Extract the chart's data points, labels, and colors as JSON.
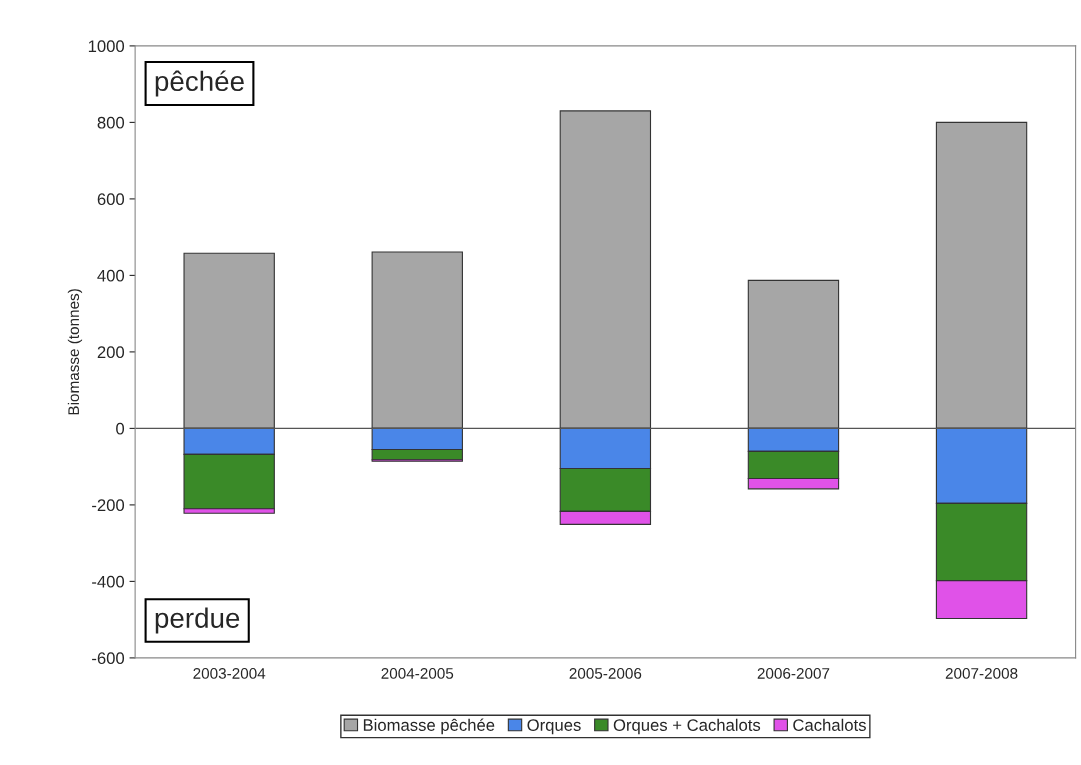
{
  "chart_data": {
    "type": "bar",
    "stacked": true,
    "ylabel": "Biomasse (tonnes)",
    "categories": [
      "2003-2004",
      "2004-2005",
      "2005-2006",
      "2006-2007",
      "2007-2008"
    ],
    "series": [
      {
        "name": "Biomasse pêchée",
        "color": "#a6a6a6",
        "values": [
          458,
          461,
          830,
          387,
          800
        ]
      },
      {
        "name": "Orques",
        "color": "#4a86e8",
        "values": [
          -68,
          -55,
          -105,
          -60,
          -196
        ]
      },
      {
        "name": "Orques + Cachalots",
        "color": "#3a8a28",
        "values": [
          -142,
          -27,
          -112,
          -71,
          -202
        ]
      },
      {
        "name": "Cachalots",
        "color": "#e052e8",
        "values": [
          -12,
          -4,
          -34,
          -27,
          -99
        ]
      }
    ],
    "ylim": [
      -600,
      1000
    ],
    "yticks": [
      -600,
      -400,
      -200,
      0,
      200,
      400,
      600,
      800,
      1000
    ],
    "annotations": [
      "pêchée",
      "perdue"
    ],
    "legend": "bottom",
    "ref_lines": [
      {
        "axis": "y",
        "value": 0,
        "color": "#555555"
      }
    ]
  }
}
